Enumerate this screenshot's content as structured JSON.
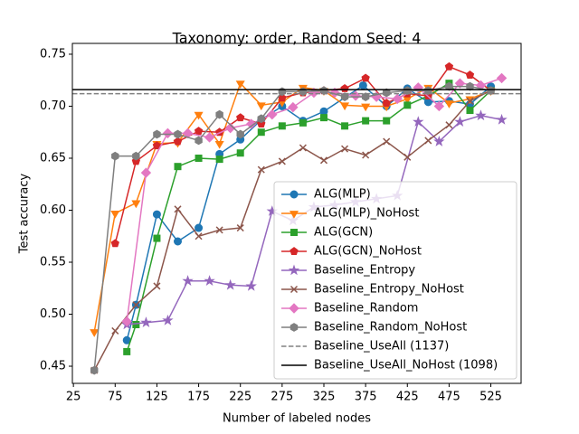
{
  "chart_data": {
    "type": "line",
    "title": "Taxonomy: order, Random Seed: 4",
    "x_label": "Number of labeled nodes",
    "y_label": "Test accuracy",
    "xlim": [
      23.75,
      561.25
    ],
    "ylim": [
      0.4335,
      0.7604
    ],
    "xticks": [
      25,
      75,
      125,
      175,
      225,
      275,
      325,
      375,
      425,
      475,
      525
    ],
    "yticks": [
      {
        "value": 0.45,
        "label": "0.45"
      },
      {
        "value": 0.5,
        "label": "0.50"
      },
      {
        "value": 0.55,
        "label": "0.55"
      },
      {
        "value": 0.6,
        "label": "0.60"
      },
      {
        "value": 0.65,
        "label": "0.65"
      },
      {
        "value": 0.7,
        "label": "0.70"
      },
      {
        "value": 0.75,
        "label": "0.75"
      }
    ],
    "legend_position": "lower right",
    "series": [
      {
        "name": "ALG(MLP)",
        "color": "#1f77b4",
        "marker": "circle",
        "x": [
          89,
          100,
          125,
          150,
          175,
          200,
          225,
          250,
          275,
          300,
          325,
          372,
          400,
          425,
          450,
          475,
          500,
          525
        ],
        "values": [
          0.475,
          0.509,
          0.596,
          0.57,
          0.583,
          0.654,
          0.668,
          0.687,
          0.7,
          0.686,
          0.695,
          0.72,
          0.7,
          0.717,
          0.704,
          0.705,
          0.702,
          0.719
        ]
      },
      {
        "name": "ALG(MLP)_NoHost",
        "color": "#ff7f0e",
        "marker": "triangle-down",
        "x": [
          50,
          75,
          100,
          125,
          150,
          175,
          200,
          225,
          250,
          275,
          300,
          325,
          350,
          375,
          400,
          425,
          450,
          475,
          500,
          525
        ],
        "values": [
          0.483,
          0.597,
          0.607,
          0.664,
          0.665,
          0.692,
          0.664,
          0.722,
          0.701,
          0.704,
          0.718,
          0.715,
          0.701,
          0.7,
          0.7,
          0.707,
          0.718,
          0.703,
          0.707,
          0.715
        ]
      },
      {
        "name": "ALG(GCN)",
        "color": "#2ca02c",
        "marker": "square",
        "x": [
          89,
          100,
          125,
          150,
          175,
          200,
          225,
          250,
          275,
          300,
          325,
          350,
          375,
          400,
          425,
          450,
          475,
          500,
          525
        ],
        "values": [
          0.464,
          0.49,
          0.573,
          0.642,
          0.65,
          0.649,
          0.655,
          0.675,
          0.681,
          0.684,
          0.689,
          0.681,
          0.686,
          0.686,
          0.701,
          0.71,
          0.722,
          0.696,
          0.715
        ]
      },
      {
        "name": "ALG(GCN)_NoHost",
        "color": "#d62728",
        "marker": "pentagon",
        "x": [
          75,
          100,
          125,
          150,
          175,
          200,
          225,
          250,
          275,
          300,
          325,
          350,
          375,
          400,
          425,
          450,
          475,
          500,
          525
        ],
        "values": [
          0.568,
          0.647,
          0.662,
          0.666,
          0.676,
          0.675,
          0.689,
          0.683,
          0.708,
          0.713,
          0.715,
          0.717,
          0.727,
          0.703,
          0.712,
          0.71,
          0.738,
          0.73,
          0.715
        ]
      },
      {
        "name": "Baseline_Entropy",
        "color": "#9467bd",
        "marker": "star",
        "x": [
          89,
          112,
          138,
          162,
          188,
          213,
          238,
          263,
          288,
          313,
          338,
          363,
          388,
          413,
          438,
          463,
          488,
          513,
          538
        ],
        "values": [
          0.49,
          0.492,
          0.494,
          0.532,
          0.532,
          0.528,
          0.527,
          0.599,
          0.59,
          0.603,
          0.605,
          0.608,
          0.611,
          0.614,
          0.685,
          0.666,
          0.685,
          0.691,
          0.687
        ]
      },
      {
        "name": "Baseline_Entropy_NoHost",
        "color": "#8c564b",
        "marker": "x",
        "x": [
          50,
          75,
          100,
          125,
          150,
          175,
          200,
          225,
          250,
          275,
          300,
          325,
          350,
          375,
          400,
          425,
          450,
          475,
          500,
          525
        ],
        "values": [
          0.446,
          0.484,
          0.509,
          0.527,
          0.601,
          0.575,
          0.581,
          0.583,
          0.639,
          0.647,
          0.66,
          0.648,
          0.659,
          0.653,
          0.666,
          0.651,
          0.667,
          0.682,
          0.705,
          0.715
        ]
      },
      {
        "name": "Baseline_Random",
        "color": "#e377c2",
        "marker": "diamond",
        "x": [
          89,
          112,
          138,
          162,
          188,
          213,
          238,
          263,
          288,
          313,
          338,
          363,
          388,
          413,
          438,
          463,
          488,
          513,
          538
        ],
        "values": [
          0.493,
          0.636,
          0.674,
          0.674,
          0.67,
          0.679,
          0.683,
          0.692,
          0.699,
          0.713,
          0.713,
          0.71,
          0.709,
          0.707,
          0.718,
          0.7,
          0.722,
          0.72,
          0.727
        ]
      },
      {
        "name": "Baseline_Random_NoHost",
        "color": "#7f7f7f",
        "marker": "hexagon",
        "x": [
          50,
          75,
          100,
          125,
          150,
          175,
          200,
          225,
          250,
          275,
          300,
          325,
          350,
          375,
          400,
          425,
          450,
          475,
          500,
          525
        ],
        "values": [
          0.446,
          0.652,
          0.652,
          0.673,
          0.673,
          0.667,
          0.692,
          0.673,
          0.688,
          0.714,
          0.714,
          0.715,
          0.709,
          0.709,
          0.713,
          0.715,
          0.715,
          0.719,
          0.719,
          0.715
        ]
      }
    ],
    "hlines": [
      {
        "name": "Baseline_UseAll (1137)",
        "value": 0.712,
        "color": "#808080",
        "style": "dashed"
      },
      {
        "name": "Baseline_UseAll_NoHost (1098)",
        "value": 0.716,
        "color": "#000000",
        "style": "solid"
      }
    ]
  }
}
